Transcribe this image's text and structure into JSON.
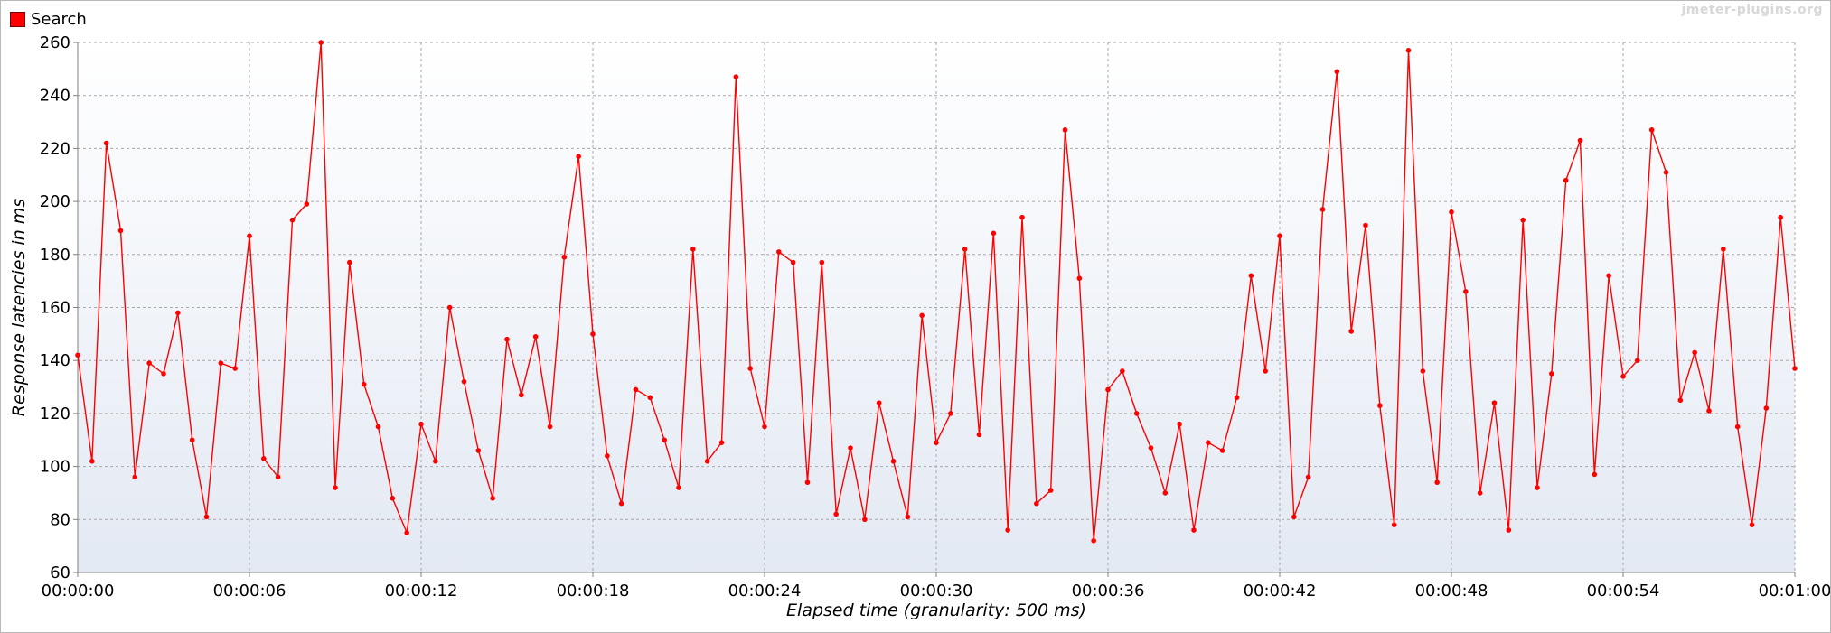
{
  "legend": {
    "label": "Search",
    "color": "#ff0000"
  },
  "watermark": "jmeter-plugins.org",
  "chart_data": {
    "type": "line",
    "xlabel": "Elapsed time (granularity: 500 ms)",
    "ylabel": "Response latencies in ms",
    "ylim": [
      60,
      260
    ],
    "xlim_seconds": [
      0,
      60
    ],
    "xtick_labels": [
      "00:00:00",
      "00:00:06",
      "00:00:12",
      "00:00:18",
      "00:00:24",
      "00:00:30",
      "00:00:36",
      "00:00:42",
      "00:00:48",
      "00:00:54",
      "00:01:00"
    ],
    "ytick_labels": [
      "60",
      "80",
      "100",
      "120",
      "140",
      "160",
      "180",
      "200",
      "220",
      "240",
      "260"
    ],
    "grid": true,
    "legend_position": "top-left",
    "series": [
      {
        "name": "Search",
        "color": "#ff0000",
        "x_seconds": [
          0,
          0.5,
          1,
          1.5,
          2,
          2.5,
          3,
          3.5,
          4,
          4.5,
          5,
          5.5,
          6,
          6.5,
          7,
          7.5,
          8,
          8.5,
          9,
          9.5,
          10,
          10.5,
          11,
          11.5,
          12,
          12.5,
          13,
          13.5,
          14,
          14.5,
          15,
          15.5,
          16,
          16.5,
          17,
          17.5,
          18,
          18.5,
          19,
          19.5,
          20,
          20.5,
          21,
          21.5,
          22,
          22.5,
          23,
          23.5,
          24,
          24.5,
          25,
          25.5,
          26,
          26.5,
          27,
          27.5,
          28,
          28.5,
          29,
          29.5,
          30,
          30.5,
          31,
          31.5,
          32,
          32.5,
          33,
          33.5,
          34,
          34.5,
          35,
          35.5,
          36,
          36.5,
          37,
          37.5,
          38,
          38.5,
          39,
          39.5,
          40,
          40.5,
          41,
          41.5,
          42,
          42.5,
          43,
          43.5,
          44,
          44.5,
          45,
          45.5,
          46,
          46.5,
          47,
          47.5,
          48,
          48.5,
          49,
          49.5,
          50,
          50.5,
          51,
          51.5,
          52,
          52.5,
          53,
          53.5,
          54,
          54.5,
          55,
          55.5,
          56,
          56.5,
          57,
          57.5,
          58,
          58.5,
          59,
          59.5,
          60
        ],
        "values": [
          142,
          102,
          222,
          189,
          96,
          139,
          135,
          158,
          110,
          81,
          139,
          137,
          187,
          103,
          96,
          193,
          199,
          260,
          92,
          177,
          131,
          115,
          88,
          75,
          116,
          102,
          160,
          132,
          106,
          88,
          148,
          127,
          149,
          115,
          179,
          217,
          150,
          104,
          86,
          129,
          126,
          110,
          92,
          182,
          102,
          109,
          247,
          137,
          115,
          181,
          177,
          94,
          177,
          82,
          107,
          80,
          124,
          102,
          81,
          157,
          109,
          120,
          182,
          112,
          188,
          76,
          194,
          86,
          91,
          227,
          171,
          72,
          129,
          136,
          120,
          107,
          90,
          116,
          76,
          109,
          106,
          126,
          172,
          136,
          187,
          81,
          96,
          197,
          249,
          151,
          191,
          123,
          78,
          257,
          136,
          94,
          196,
          166,
          90,
          124,
          76,
          193,
          92,
          135,
          208,
          223,
          97,
          172,
          134,
          140,
          227,
          211,
          125,
          143,
          121,
          182,
          115,
          78,
          122,
          194,
          137
        ]
      }
    ]
  }
}
